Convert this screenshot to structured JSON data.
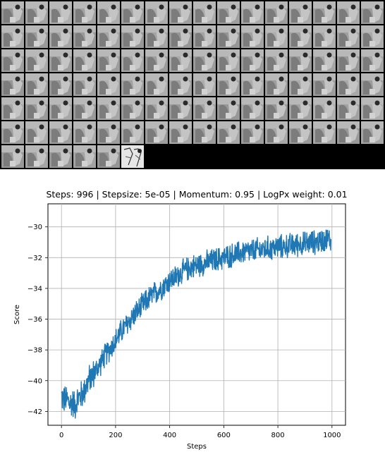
{
  "sample_grid": {
    "columns": 16,
    "tile_count": 102,
    "highlighted_tile_index": 101,
    "background_color": "#000000",
    "tile_color": "#9a9a9a"
  },
  "chart_data": {
    "type": "line",
    "title": "Steps: 996 | Stepsize: 5e-05 | Momentum: 0.95 | LogPx weight: 0.01",
    "xlabel": "Steps",
    "ylabel": "Score",
    "xlim": [
      -50,
      1050
    ],
    "ylim": [
      -42.9,
      -28.5
    ],
    "xticks": [
      0,
      200,
      400,
      600,
      800,
      1000
    ],
    "yticks": [
      -42,
      -40,
      -38,
      -36,
      -34,
      -32,
      -30
    ],
    "xtick_labels": [
      "0",
      "200",
      "400",
      "600",
      "800",
      "1000"
    ],
    "ytick_labels": [
      "−42",
      "−40",
      "−38",
      "−36",
      "−34",
      "−32",
      "−30"
    ],
    "grid": true,
    "series": [
      {
        "color": "#1f77b4",
        "x": [
          0,
          10,
          20,
          30,
          40,
          50,
          60,
          70,
          80,
          90,
          100,
          120,
          140,
          160,
          180,
          200,
          220,
          240,
          260,
          280,
          300,
          320,
          340,
          360,
          380,
          400,
          420,
          440,
          460,
          480,
          500,
          520,
          540,
          560,
          580,
          600,
          620,
          640,
          660,
          680,
          700,
          720,
          740,
          760,
          780,
          800,
          820,
          840,
          860,
          880,
          900,
          920,
          940,
          960,
          980,
          996
        ],
        "y": [
          -41.0,
          -41.3,
          -41.2,
          -41.5,
          -41.4,
          -41.6,
          -41.2,
          -41.0,
          -40.8,
          -40.4,
          -40.0,
          -39.5,
          -39.0,
          -38.4,
          -37.9,
          -37.4,
          -36.8,
          -36.4,
          -35.9,
          -35.5,
          -35.1,
          -34.7,
          -34.4,
          -34.1,
          -33.8,
          -33.5,
          -33.3,
          -33.0,
          -32.8,
          -32.6,
          -32.5,
          -32.4,
          -32.3,
          -32.2,
          -32.1,
          -32.0,
          -31.9,
          -31.8,
          -31.7,
          -31.6,
          -31.6,
          -31.5,
          -31.5,
          -31.4,
          -31.4,
          -31.3,
          -31.3,
          -31.2,
          -31.2,
          -31.1,
          -31.1,
          -31.0,
          -31.0,
          -30.9,
          -30.8,
          -30.8
        ]
      }
    ]
  }
}
